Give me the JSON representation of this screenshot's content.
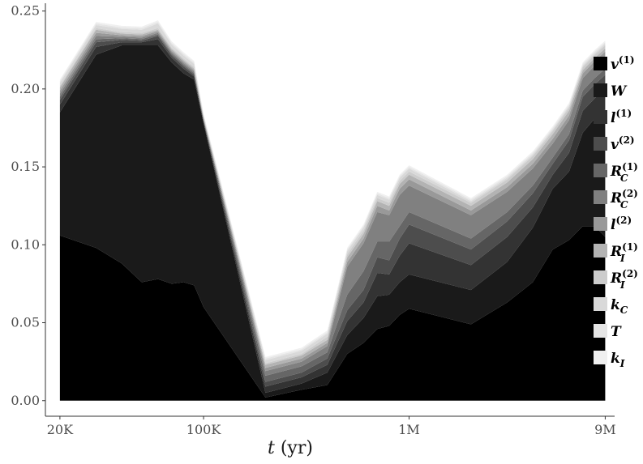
{
  "chart_data": {
    "type": "area",
    "stacked": true,
    "xlabel": "t (yr)",
    "xlabel_parts": {
      "var": "t",
      "unit": " (yr)"
    },
    "xscale": "log",
    "xlim": [
      17000,
      10000000
    ],
    "x_ticks": [
      {
        "value": 20000,
        "label": "20K"
      },
      {
        "value": 100000,
        "label": "100K"
      },
      {
        "value": 1000000,
        "label": "1M"
      },
      {
        "value": 9000000,
        "label": "9M"
      }
    ],
    "ylim": [
      -0.01,
      0.255
    ],
    "y_ticks": [
      {
        "value": 0.0,
        "label": "0.00"
      },
      {
        "value": 0.05,
        "label": "0.05"
      },
      {
        "value": 0.1,
        "label": "0.10"
      },
      {
        "value": 0.15,
        "label": "0.15"
      },
      {
        "value": 0.2,
        "label": "0.20"
      },
      {
        "value": 0.25,
        "label": "0.25"
      }
    ],
    "legend_position": "right",
    "x": [
      20000,
      30000,
      40000,
      50000,
      60000,
      70000,
      80000,
      90000,
      100000,
      200000,
      300000,
      400000,
      500000,
      600000,
      700000,
      800000,
      900000,
      1000000,
      2000000,
      3000000,
      4000000,
      5000000,
      6000000,
      7000000,
      8000000,
      9000000
    ],
    "series": [
      {
        "name": "v(1)",
        "base": "v",
        "sup": "(1)",
        "sub": "",
        "color": "#000000",
        "values": [
          0.106,
          0.098,
          0.088,
          0.076,
          0.078,
          0.075,
          0.076,
          0.074,
          0.06,
          0.002,
          0.007,
          0.01,
          0.03,
          0.037,
          0.046,
          0.048,
          0.055,
          0.059,
          0.049,
          0.063,
          0.076,
          0.097,
          0.103,
          0.112,
          0.112,
          0.105
        ]
      },
      {
        "name": "W",
        "base": "W",
        "sup": "",
        "sub": "",
        "color": "#1a1a1a",
        "values": [
          0.079,
          0.124,
          0.14,
          0.152,
          0.15,
          0.142,
          0.134,
          0.132,
          0.118,
          0.003,
          0.004,
          0.008,
          0.012,
          0.016,
          0.021,
          0.02,
          0.021,
          0.022,
          0.022,
          0.026,
          0.035,
          0.039,
          0.044,
          0.06,
          0.069,
          0.082
        ]
      },
      {
        "name": "l(1)",
        "base": "l",
        "sup": "(1)",
        "sub": "",
        "color": "#333333",
        "values": [
          0.005,
          0.005,
          0.002,
          0.002,
          0.004,
          0.003,
          0.003,
          0.002,
          0.001,
          0.004,
          0.004,
          0.005,
          0.009,
          0.01,
          0.015,
          0.013,
          0.017,
          0.02,
          0.016,
          0.016,
          0.013,
          0.009,
          0.012,
          0.014,
          0.013,
          0.013
        ]
      },
      {
        "name": "v(2)",
        "base": "v",
        "sup": "(2)",
        "sub": "",
        "color": "#4d4d4d",
        "values": [
          0.003,
          0.003,
          0.0015,
          0.001,
          0.002,
          0.0015,
          0.0015,
          0.001,
          0.0007,
          0.003,
          0.003,
          0.004,
          0.007,
          0.008,
          0.01,
          0.009,
          0.011,
          0.012,
          0.01,
          0.01,
          0.009,
          0.007,
          0.008,
          0.009,
          0.009,
          0.009
        ]
      },
      {
        "name": "RC(1)",
        "base": "R",
        "sup": "(1)",
        "sub": "C",
        "color": "#666666",
        "values": [
          0.002,
          0.002,
          0.001,
          0.001,
          0.001,
          0.001,
          0.001,
          0.001,
          0.0005,
          0.004,
          0.004,
          0.004,
          0.01,
          0.012,
          0.01,
          0.012,
          0.008,
          0.008,
          0.007,
          0.006,
          0.005,
          0.004,
          0.004,
          0.004,
          0.004,
          0.004
        ]
      },
      {
        "name": "RC(2)",
        "base": "R",
        "sup": "(2)",
        "sub": "C",
        "color": "#808080",
        "values": [
          0.002,
          0.002,
          0.001,
          0.001,
          0.001,
          0.001,
          0.001,
          0.001,
          0.0005,
          0.003,
          0.003,
          0.004,
          0.018,
          0.018,
          0.019,
          0.017,
          0.02,
          0.017,
          0.015,
          0.013,
          0.011,
          0.009,
          0.009,
          0.008,
          0.008,
          0.008
        ]
      },
      {
        "name": "l(2)",
        "base": "l",
        "sup": "(2)",
        "sub": "",
        "color": "#999999",
        "values": [
          0.002,
          0.002,
          0.001,
          0.001,
          0.001,
          0.001,
          0.001,
          0.001,
          0.0005,
          0.002,
          0.002,
          0.002,
          0.003,
          0.003,
          0.004,
          0.003,
          0.004,
          0.004,
          0.003,
          0.003,
          0.003,
          0.003,
          0.003,
          0.003,
          0.003,
          0.003
        ]
      },
      {
        "name": "RI(1)",
        "base": "R",
        "sup": "(1)",
        "sub": "I",
        "color": "#b3b3b3",
        "values": [
          0.002,
          0.002,
          0.001,
          0.001,
          0.001,
          0.001,
          0.001,
          0.001,
          0.0005,
          0.002,
          0.002,
          0.002,
          0.003,
          0.003,
          0.003,
          0.003,
          0.003,
          0.003,
          0.003,
          0.003,
          0.003,
          0.003,
          0.003,
          0.002,
          0.002,
          0.002
        ]
      },
      {
        "name": "RI(2)",
        "base": "R",
        "sup": "(2)",
        "sub": "I",
        "color": "#cccccc",
        "values": [
          0.001,
          0.001,
          0.001,
          0.001,
          0.001,
          0.001,
          0.001,
          0.001,
          0.0005,
          0.001,
          0.001,
          0.002,
          0.002,
          0.002,
          0.002,
          0.002,
          0.002,
          0.002,
          0.002,
          0.002,
          0.002,
          0.002,
          0.002,
          0.002,
          0.002,
          0.002
        ]
      },
      {
        "name": "kC",
        "base": "k",
        "sup": "",
        "sub": "C",
        "color": "#d9d9d9",
        "values": [
          0.002,
          0.002,
          0.002,
          0.002,
          0.003,
          0.002,
          0.002,
          0.002,
          0.001,
          0.002,
          0.002,
          0.002,
          0.002,
          0.002,
          0.002,
          0.002,
          0.002,
          0.002,
          0.001,
          0.001,
          0.001,
          0.001,
          0.001,
          0.001,
          0.001,
          0.001
        ]
      },
      {
        "name": "T",
        "base": "T",
        "sup": "",
        "sub": "",
        "color": "#e5e5e5",
        "values": [
          0.001,
          0.001,
          0.001,
          0.001,
          0.001,
          0.001,
          0.001,
          0.001,
          0.0005,
          0.001,
          0.001,
          0.001,
          0.001,
          0.001,
          0.001,
          0.001,
          0.001,
          0.001,
          0.001,
          0.001,
          0.001,
          0.001,
          0.001,
          0.001,
          0.001,
          0.001
        ]
      },
      {
        "name": "kI",
        "base": "k",
        "sup": "",
        "sub": "I",
        "color": "#f0f0f0",
        "values": [
          0.001,
          0.001,
          0.001,
          0.001,
          0.001,
          0.001,
          0.001,
          0.001,
          0.0005,
          0.001,
          0.001,
          0.001,
          0.001,
          0.001,
          0.001,
          0.001,
          0.001,
          0.001,
          0.001,
          0.001,
          0.001,
          0.001,
          0.001,
          0.001,
          0.001,
          0.001
        ]
      }
    ]
  }
}
